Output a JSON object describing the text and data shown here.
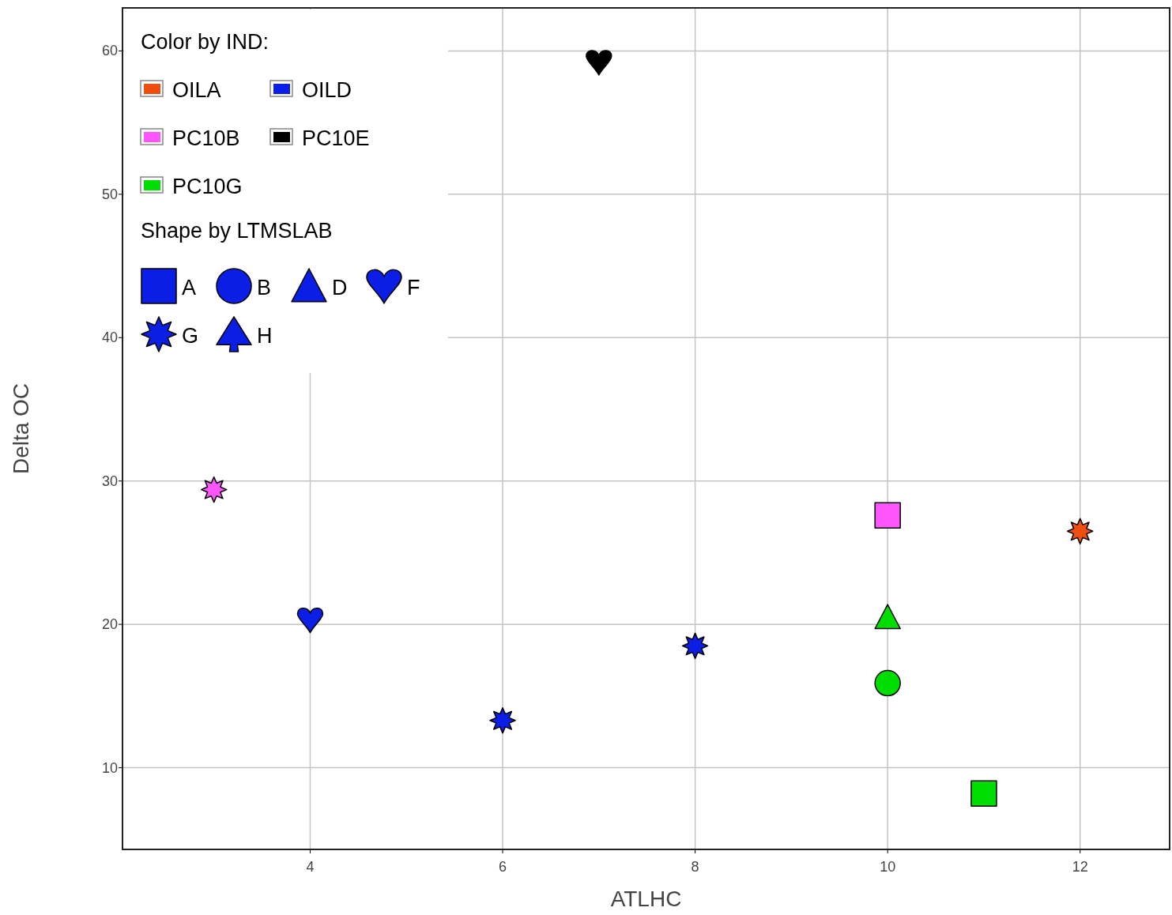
{
  "chart_data": {
    "type": "scatter",
    "xlabel": "ATLHC",
    "ylabel": "Delta OC",
    "legend_title": "Color by IND:",
    "legend": "top left",
    "grid": true,
    "xlim": [
      2.05,
      12.93
    ],
    "xticks": [
      4,
      6,
      8,
      10,
      12
    ],
    "ylim": [
      4.3,
      63
    ],
    "yticks": [
      10,
      20,
      30,
      40,
      50,
      60
    ],
    "annotations": [
      "Shape by LTMSLAB"
    ],
    "series": [
      {
        "name": "OILA",
        "color": "#f04e10",
        "marker": "star",
        "x": [
          12
        ],
        "values": [
          26.5
        ]
      },
      {
        "name": "OILD",
        "color": "#0a1ee6",
        "x": [
          4
        ],
        "values": [
          20.3
        ]
      },
      {
        "color": "#0a1ee6",
        "marker": "star",
        "x": [
          6,
          8
        ],
        "values": [
          13.3,
          18.5
        ]
      },
      {
        "name": "PC10B",
        "color": "#ff55ff",
        "marker": "star",
        "x": [
          3
        ],
        "values": [
          29.4
        ]
      },
      {
        "color": "#ff55ff",
        "marker": "square",
        "x": [
          10
        ],
        "values": [
          27.6
        ]
      },
      {
        "name": "PC10E",
        "color": "#000000",
        "x": [
          7
        ],
        "values": [
          59.2
        ]
      },
      {
        "name": "PC10G",
        "color": "#00dd00",
        "marker": "triangle",
        "x": [
          10
        ],
        "values": [
          20.5
        ]
      },
      {
        "color": "#00dd00",
        "marker": "circle",
        "x": [
          10
        ],
        "values": [
          15.9
        ]
      },
      {
        "color": "#00dd00",
        "marker": "square",
        "x": [
          11
        ],
        "values": [
          8.2
        ]
      },
      {
        "name": "A",
        "color": "#0a1ee6",
        "marker": "square"
      },
      {
        "name": "B",
        "color": "#0a1ee6",
        "marker": "circle"
      },
      {
        "name": "D",
        "color": "#0a1ee6",
        "marker": "triangle"
      },
      {
        "name": "F",
        "color": "#0a1ee6"
      },
      {
        "name": "G",
        "color": "#0a1ee6",
        "marker": "star"
      },
      {
        "name": "H",
        "color": "#0a1ee6",
        "marker": "spade"
      }
    ]
  }
}
